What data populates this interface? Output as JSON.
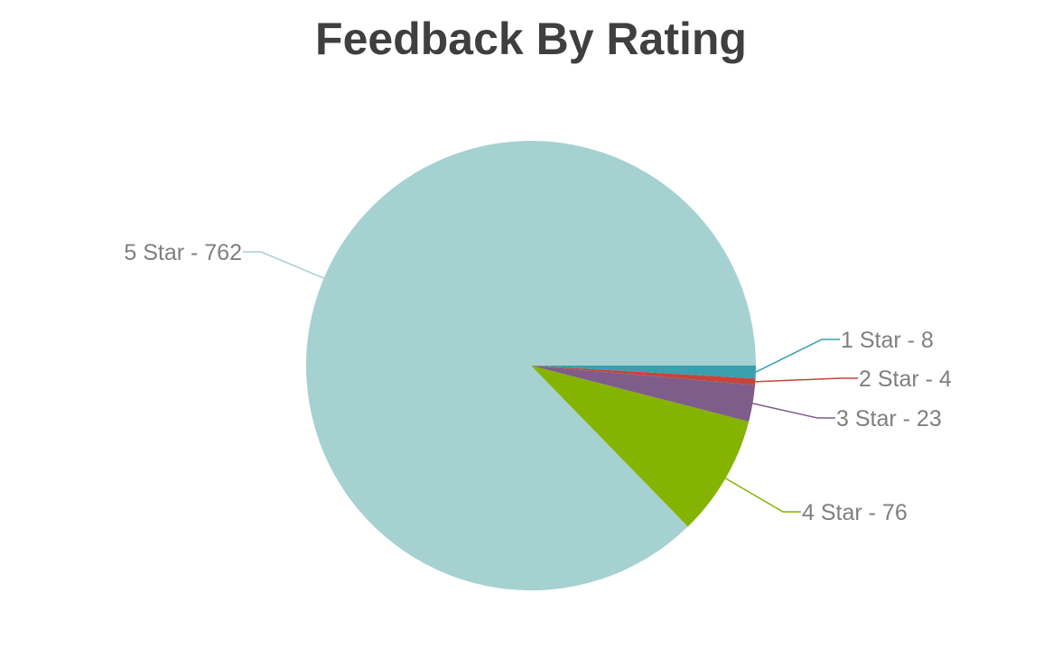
{
  "chart_data": {
    "type": "pie",
    "title": "Feedback By Rating",
    "slices": [
      {
        "name": "1 Star",
        "value": 8,
        "label": "1 Star - 8",
        "color": "#3a9fae"
      },
      {
        "name": "2 Star",
        "value": 4,
        "label": "2 Star - 4",
        "color": "#c8443b"
      },
      {
        "name": "3 Star",
        "value": 23,
        "label": "3 Star - 23",
        "color": "#7e5d8b"
      },
      {
        "name": "4 Star",
        "value": 76,
        "label": "4 Star - 76",
        "color": "#84b300"
      },
      {
        "name": "5 Star",
        "value": 762,
        "label": "5 Star - 762",
        "color": "#a6d1d1"
      }
    ],
    "start": "3 o'clock",
    "direction": "clockwise",
    "legend": "none",
    "data_labels": "outside with leader lines"
  }
}
